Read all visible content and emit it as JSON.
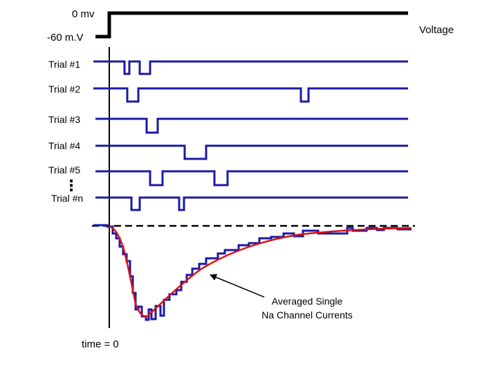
{
  "stimulus": {
    "high_label": "0 mv",
    "low_label": "-60 m.V",
    "side_label": "Voltage"
  },
  "trials": {
    "labels": [
      "Trial #1",
      "Trial #2",
      "Trial #3",
      "Trial #4",
      "Trial #5",
      "Trial #n"
    ],
    "ellipsis": "⋮"
  },
  "average": {
    "annotation_line1": "Averaged Single",
    "annotation_line2": "Na Channel Currents"
  },
  "time_axis": {
    "label": "time = 0"
  },
  "colors": {
    "trace": "#1a1aa6",
    "fit_curve": "#e01010",
    "ink": "#000000"
  }
}
